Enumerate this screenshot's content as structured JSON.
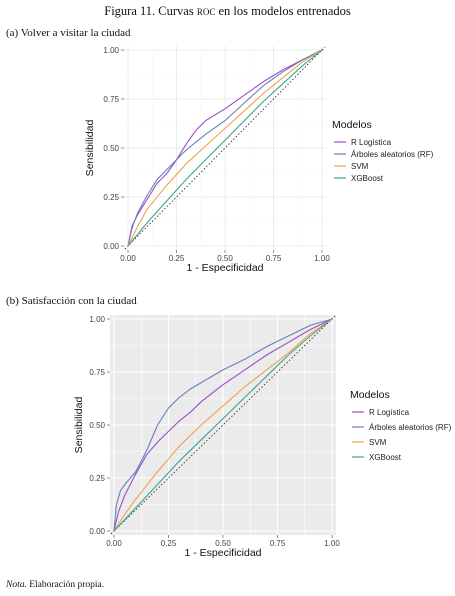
{
  "figure": {
    "title_prefix": "Figura 11. Curvas ",
    "title_sc": "roc",
    "title_suffix": " en los modelos entrenados",
    "note_label": "Nota.",
    "note_text": " Elaboración propia."
  },
  "colors": {
    "R Logística": "#9b4dca",
    "Árboles aleatorios (RF)": "#6a7fb8",
    "SVM": "#f2a04a",
    "XGBoost": "#3aa58a"
  },
  "chart_data": [
    {
      "type": "line",
      "panel_label": "(a) Volver a visitar la ciudad",
      "xlabel": "1 - Especificidad",
      "ylabel": "Sensibilidad",
      "xlim": [
        0,
        1
      ],
      "ylim": [
        0,
        1
      ],
      "xticks": [
        "0.00",
        "0.25",
        "0.50",
        "0.75",
        "1.00"
      ],
      "yticks": [
        "0.00",
        "0.25",
        "0.50",
        "0.75",
        "1.00"
      ],
      "grid": true,
      "background": "white",
      "reference_diagonal": true,
      "legend_title": "Modelos",
      "legend_position": "right",
      "series": [
        {
          "name": "R Logística",
          "x": [
            0,
            0.02,
            0.05,
            0.1,
            0.15,
            0.2,
            0.25,
            0.3,
            0.35,
            0.4,
            0.5,
            0.6,
            0.7,
            0.8,
            0.9,
            1.0
          ],
          "y": [
            0,
            0.1,
            0.16,
            0.24,
            0.32,
            0.37,
            0.44,
            0.52,
            0.59,
            0.64,
            0.7,
            0.77,
            0.84,
            0.9,
            0.95,
            1.0
          ]
        },
        {
          "name": "Árboles aleatorios (RF)",
          "x": [
            0,
            0.02,
            0.05,
            0.1,
            0.15,
            0.2,
            0.25,
            0.3,
            0.35,
            0.4,
            0.5,
            0.6,
            0.7,
            0.8,
            0.9,
            1.0
          ],
          "y": [
            0,
            0.09,
            0.17,
            0.26,
            0.34,
            0.39,
            0.44,
            0.49,
            0.53,
            0.57,
            0.64,
            0.73,
            0.82,
            0.89,
            0.95,
            1.0
          ]
        },
        {
          "name": "SVM",
          "x": [
            0,
            0.05,
            0.1,
            0.2,
            0.3,
            0.4,
            0.5,
            0.6,
            0.7,
            0.8,
            0.9,
            1.0
          ],
          "y": [
            0,
            0.1,
            0.19,
            0.31,
            0.42,
            0.51,
            0.6,
            0.69,
            0.78,
            0.86,
            0.94,
            1.0
          ]
        },
        {
          "name": "XGBoost",
          "x": [
            0,
            0.1,
            0.2,
            0.3,
            0.4,
            0.5,
            0.6,
            0.7,
            0.8,
            0.9,
            1.0
          ],
          "y": [
            0,
            0.12,
            0.23,
            0.34,
            0.44,
            0.54,
            0.64,
            0.74,
            0.83,
            0.92,
            1.0
          ]
        }
      ]
    },
    {
      "type": "line",
      "panel_label": "(b) Satisfacción con la ciudad",
      "xlabel": "1 - Especificidad",
      "ylabel": "Sensibilidad",
      "xlim": [
        0,
        1
      ],
      "ylim": [
        0,
        1
      ],
      "xticks": [
        "0.00",
        "0.25",
        "0.50",
        "0.75",
        "1.00"
      ],
      "yticks": [
        "0.00",
        "0.25",
        "0.50",
        "0.75",
        "1.00"
      ],
      "grid": true,
      "background": "grey",
      "reference_diagonal": true,
      "legend_title": "Modelos",
      "legend_position": "right",
      "series": [
        {
          "name": "R Logística",
          "x": [
            0,
            0.02,
            0.05,
            0.1,
            0.15,
            0.2,
            0.25,
            0.3,
            0.35,
            0.4,
            0.5,
            0.6,
            0.7,
            0.8,
            0.9,
            1.0
          ],
          "y": [
            0,
            0.09,
            0.17,
            0.27,
            0.36,
            0.42,
            0.47,
            0.52,
            0.56,
            0.61,
            0.69,
            0.76,
            0.83,
            0.89,
            0.95,
            1.0
          ]
        },
        {
          "name": "Árboles aleatorios (RF)",
          "x": [
            0,
            0.01,
            0.03,
            0.05,
            0.1,
            0.15,
            0.2,
            0.25,
            0.3,
            0.35,
            0.4,
            0.5,
            0.6,
            0.7,
            0.8,
            0.9,
            1.0
          ],
          "y": [
            0,
            0.12,
            0.19,
            0.22,
            0.28,
            0.38,
            0.5,
            0.58,
            0.63,
            0.67,
            0.7,
            0.76,
            0.81,
            0.87,
            0.92,
            0.97,
            1.0
          ]
        },
        {
          "name": "SVM",
          "x": [
            0,
            0.05,
            0.1,
            0.2,
            0.3,
            0.4,
            0.5,
            0.6,
            0.7,
            0.8,
            0.9,
            1.0
          ],
          "y": [
            0,
            0.08,
            0.15,
            0.28,
            0.4,
            0.5,
            0.59,
            0.68,
            0.76,
            0.84,
            0.93,
            1.0
          ]
        },
        {
          "name": "XGBoost",
          "x": [
            0,
            0.1,
            0.2,
            0.3,
            0.4,
            0.5,
            0.6,
            0.7,
            0.8,
            0.9,
            1.0
          ],
          "y": [
            0,
            0.11,
            0.22,
            0.33,
            0.43,
            0.53,
            0.63,
            0.73,
            0.83,
            0.92,
            1.0
          ]
        }
      ]
    }
  ]
}
